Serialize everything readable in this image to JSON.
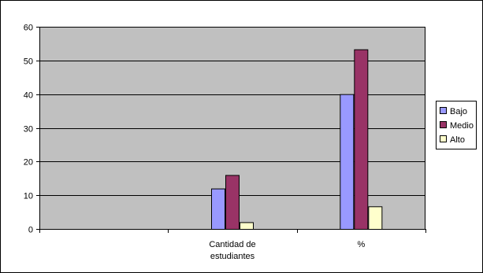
{
  "chart_data": {
    "type": "bar",
    "categories": [
      [
        "",
        ""
      ],
      [
        "Cantidad de",
        "estudiantes"
      ],
      [
        "%",
        ""
      ]
    ],
    "series": [
      {
        "name": "Bajo",
        "values": [
          null,
          12,
          40
        ]
      },
      {
        "name": "Medio",
        "values": [
          null,
          16,
          53.3
        ]
      },
      {
        "name": "Alto",
        "values": [
          null,
          2,
          6.7
        ]
      }
    ],
    "yticks": [
      "0",
      "10",
      "20",
      "30",
      "40",
      "50",
      "60"
    ],
    "ylim": [
      0,
      60
    ],
    "grid": true,
    "legend_position": "right",
    "colors": {
      "Bajo": "#9999ff",
      "Medio": "#993366",
      "Alto": "#ffffcc",
      "plot_background": "#c0c0c0",
      "gridline": "#000000"
    }
  }
}
